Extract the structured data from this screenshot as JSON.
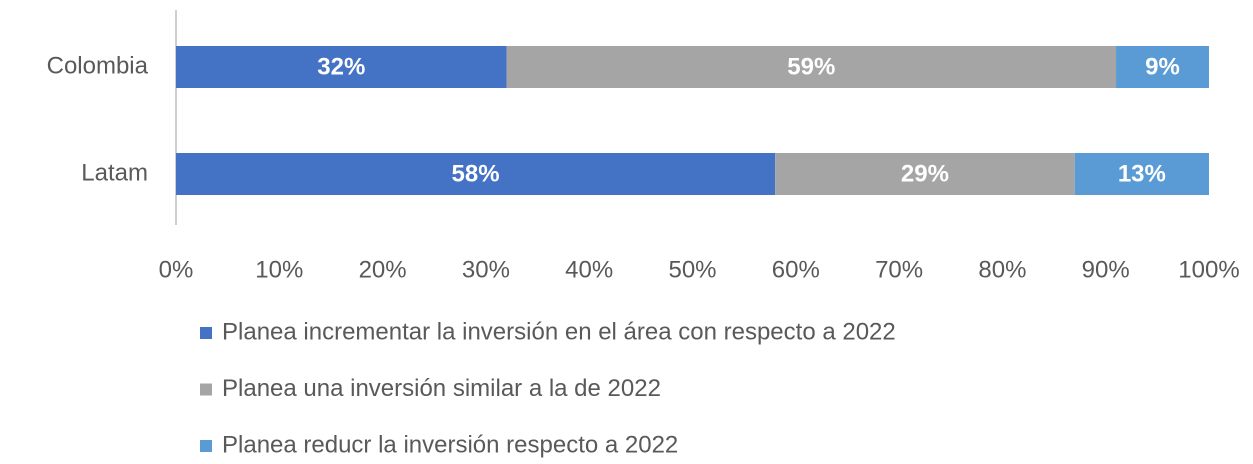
{
  "chart_data": {
    "type": "stacked-bar-horizontal",
    "categories": [
      "Colombia",
      "Latam"
    ],
    "series": [
      {
        "name": "Planea incrementar la inversión en el área con respecto a 2022",
        "color": "#4472c4",
        "values": [
          32,
          58
        ],
        "value_labels": [
          "32%",
          "58%"
        ]
      },
      {
        "name": "Planea una inversión similar a la de 2022",
        "color": "#a5a5a5",
        "values": [
          59,
          29
        ],
        "value_labels": [
          "59%",
          "29%"
        ]
      },
      {
        "name": "Planea reducr la inversión respecto a 2022",
        "color": "#5b9bd5",
        "values": [
          9,
          13
        ],
        "value_labels": [
          "9%",
          "13%"
        ]
      }
    ],
    "xlim": [
      0,
      100
    ],
    "xticks": [
      {
        "value": 0,
        "label": "0%"
      },
      {
        "value": 10,
        "label": "10%"
      },
      {
        "value": 20,
        "label": "20%"
      },
      {
        "value": 30,
        "label": "30%"
      },
      {
        "value": 40,
        "label": "40%"
      },
      {
        "value": 50,
        "label": "50%"
      },
      {
        "value": 60,
        "label": "60%"
      },
      {
        "value": 70,
        "label": "70%"
      },
      {
        "value": 80,
        "label": "80%"
      },
      {
        "value": 90,
        "label": "90%"
      },
      {
        "value": 100,
        "label": "100%"
      }
    ],
    "legend": "bottom"
  }
}
